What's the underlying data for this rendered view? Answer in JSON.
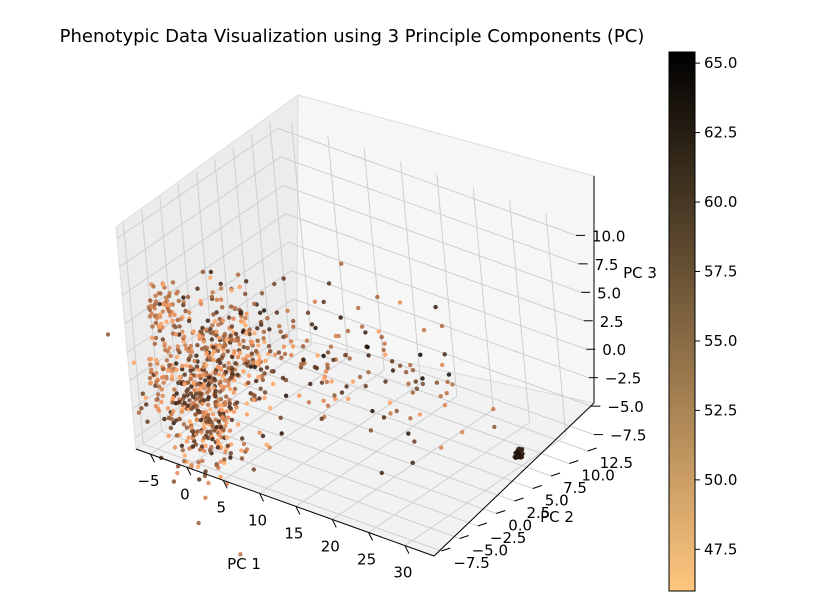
{
  "chart_data": {
    "type": "scatter",
    "projection": "3d",
    "title": "Phenotypic Data Visualization using 3 Principle Components (PC)",
    "xlabel": "PC 1",
    "ylabel": "PC 2",
    "zlabel": "PC 3",
    "xlim": [
      -7,
      34
    ],
    "ylim": [
      -8.5,
      13.5
    ],
    "zlim": [
      -8.5,
      11
    ],
    "x_ticks": [
      "−5",
      "0",
      "5",
      "10",
      "15",
      "20",
      "25",
      "30"
    ],
    "x_tick_values": [
      -5,
      0,
      5,
      10,
      15,
      20,
      25,
      30
    ],
    "y_ticks": [
      "−7.5",
      "−5.0",
      "−2.5",
      "0.0",
      "2.5",
      "5.0",
      "7.5",
      "10.0",
      "12.5"
    ],
    "y_tick_values": [
      -7.5,
      -5,
      -2.5,
      0,
      2.5,
      5,
      7.5,
      10,
      12.5
    ],
    "z_ticks": [
      "−7.5",
      "−5.0",
      "−2.5",
      "0.0",
      "2.5",
      "5.0",
      "7.5",
      "10.0"
    ],
    "z_tick_values": [
      -7.5,
      -5,
      -2.5,
      0,
      2.5,
      5,
      7.5,
      10
    ],
    "colorbar": {
      "colormap": "copper_r",
      "vmin": 46.0,
      "vmax": 65.4,
      "ticks": [
        "47.5",
        "50.0",
        "52.5",
        "55.0",
        "57.5",
        "60.0",
        "62.5",
        "65.0"
      ],
      "tick_values": [
        47.5,
        50,
        52.5,
        55,
        57.5,
        60,
        62.5,
        65
      ],
      "color_low": "#ffc77f",
      "color_high": "#000000"
    },
    "clusters": [
      {
        "center": [
          -4.5,
          -5.5,
          3.0
        ],
        "spread": [
          0.8,
          0.8,
          1.2
        ],
        "count": 60,
        "value_range": [
          49,
          56
        ]
      },
      {
        "center": [
          -5.5,
          -6.0,
          -3.0
        ],
        "spread": [
          0.6,
          0.6,
          1.2
        ],
        "count": 30,
        "value_range": [
          49,
          55
        ]
      },
      {
        "center": [
          0.5,
          -6.5,
          -3.5
        ],
        "spread": [
          3.0,
          1.2,
          3.0
        ],
        "count": 420,
        "value_range": [
          48,
          62
        ]
      },
      {
        "center": [
          4.0,
          -5.0,
          1.5
        ],
        "spread": [
          3.0,
          2.0,
          2.5
        ],
        "count": 220,
        "value_range": [
          48,
          62
        ]
      },
      {
        "center": [
          10.0,
          -1.0,
          0.0
        ],
        "spread": [
          4.0,
          3.0,
          3.0
        ],
        "count": 90,
        "value_range": [
          49,
          64
        ]
      },
      {
        "center": [
          18.0,
          3.0,
          -2.0
        ],
        "spread": [
          5.0,
          3.0,
          3.0
        ],
        "count": 55,
        "value_range": [
          52,
          64
        ]
      },
      {
        "center": [
          -1.0,
          -3.0,
          -8.0
        ],
        "spread": [
          0.6,
          0.6,
          0.6
        ],
        "count": 12,
        "value_range": [
          50,
          55
        ]
      },
      {
        "center": [
          33.0,
          4.5,
          -5.5
        ],
        "spread": [
          0.25,
          0.25,
          0.2
        ],
        "count": 25,
        "value_range": [
          62,
          64
        ]
      }
    ]
  }
}
